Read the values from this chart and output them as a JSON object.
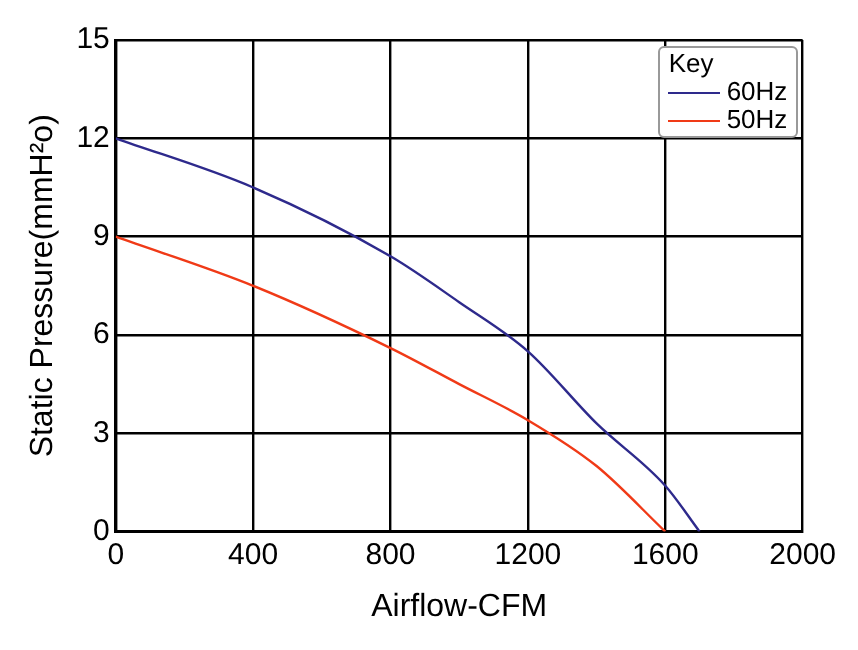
{
  "chart_data": {
    "type": "line",
    "xlabel": "Airflow-CFM",
    "ylabel": "Static Pressure(mmH²o)",
    "legend_title": "Key",
    "legend": "top right",
    "grid": true,
    "marker": "none",
    "line_style": "solid",
    "xlim": [
      0,
      2000
    ],
    "xticks": [
      0,
      400,
      800,
      1200,
      1600,
      2000
    ],
    "ylim": [
      0,
      15
    ],
    "yticks": [
      0,
      3,
      6,
      9,
      12,
      15
    ],
    "series": [
      {
        "name": "60Hz",
        "color": "#2e2a8c",
        "x": [
          0,
          400,
          800,
          1000,
          1200,
          1400,
          1600,
          1700
        ],
        "values": [
          12,
          10.5,
          8.4,
          7,
          5.5,
          3.3,
          1.4,
          0
        ]
      },
      {
        "name": "50Hz",
        "color": "#f03a17",
        "x": [
          0,
          400,
          800,
          1000,
          1200,
          1400,
          1600
        ],
        "values": [
          9,
          7.5,
          5.6,
          4.5,
          3.4,
          2,
          0
        ]
      }
    ]
  }
}
